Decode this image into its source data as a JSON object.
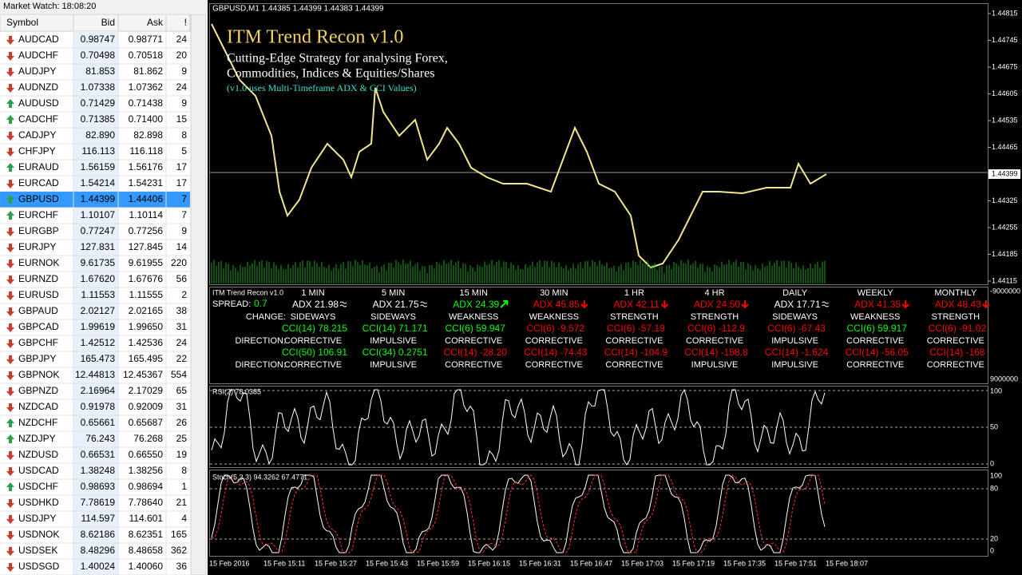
{
  "market_watch": {
    "title": "Market Watch: 18:08:20",
    "columns": [
      "Symbol",
      "Bid",
      "Ask",
      "!"
    ],
    "selected_row": 10,
    "rows": [
      {
        "symbol": "AUDCAD",
        "bid": "0.98747",
        "ask": "0.98771",
        "spread": 24,
        "trend": "down"
      },
      {
        "symbol": "AUDCHF",
        "bid": "0.70498",
        "ask": "0.70518",
        "spread": 20,
        "trend": "down"
      },
      {
        "symbol": "AUDJPY",
        "bid": "81.853",
        "ask": "81.862",
        "spread": 9,
        "trend": "down"
      },
      {
        "symbol": "AUDNZD",
        "bid": "1.07338",
        "ask": "1.07362",
        "spread": 24,
        "trend": "down"
      },
      {
        "symbol": "AUDUSD",
        "bid": "0.71429",
        "ask": "0.71438",
        "spread": 9,
        "trend": "up"
      },
      {
        "symbol": "CADCHF",
        "bid": "0.71385",
        "ask": "0.71400",
        "spread": 15,
        "trend": "up"
      },
      {
        "symbol": "CADJPY",
        "bid": "82.890",
        "ask": "82.898",
        "spread": 8,
        "trend": "down"
      },
      {
        "symbol": "CHFJPY",
        "bid": "116.113",
        "ask": "116.118",
        "spread": 5,
        "trend": "down"
      },
      {
        "symbol": "EURAUD",
        "bid": "1.56159",
        "ask": "1.56176",
        "spread": 17,
        "trend": "up"
      },
      {
        "symbol": "EURCAD",
        "bid": "1.54214",
        "ask": "1.54231",
        "spread": 17,
        "trend": "down"
      },
      {
        "symbol": "GBPUSD",
        "bid": "1.44399",
        "ask": "1.44406",
        "spread": 7,
        "trend": "up"
      },
      {
        "symbol": "EURCHF",
        "bid": "1.10107",
        "ask": "1.10114",
        "spread": 7,
        "trend": "up"
      },
      {
        "symbol": "EURGBP",
        "bid": "0.77247",
        "ask": "0.77256",
        "spread": 9,
        "trend": "down"
      },
      {
        "symbol": "EURJPY",
        "bid": "127.831",
        "ask": "127.845",
        "spread": 14,
        "trend": "down"
      },
      {
        "symbol": "EURNOK",
        "bid": "9.61735",
        "ask": "9.61955",
        "spread": 220,
        "trend": "down"
      },
      {
        "symbol": "EURNZD",
        "bid": "1.67620",
        "ask": "1.67676",
        "spread": 56,
        "trend": "down"
      },
      {
        "symbol": "EURUSD",
        "bid": "1.11553",
        "ask": "1.11555",
        "spread": 2,
        "trend": "down"
      },
      {
        "symbol": "GBPAUD",
        "bid": "2.02127",
        "ask": "2.02165",
        "spread": 38,
        "trend": "down"
      },
      {
        "symbol": "GBPCAD",
        "bid": "1.99619",
        "ask": "1.99650",
        "spread": 31,
        "trend": "down"
      },
      {
        "symbol": "GBPCHF",
        "bid": "1.42512",
        "ask": "1.42536",
        "spread": 24,
        "trend": "down"
      },
      {
        "symbol": "GBPJPY",
        "bid": "165.473",
        "ask": "165.495",
        "spread": 22,
        "trend": "down"
      },
      {
        "symbol": "GBPNOK",
        "bid": "12.44813",
        "ask": "12.45367",
        "spread": 554,
        "trend": "down"
      },
      {
        "symbol": "GBPNZD",
        "bid": "2.16964",
        "ask": "2.17029",
        "spread": 65,
        "trend": "down"
      },
      {
        "symbol": "NZDCAD",
        "bid": "0.91978",
        "ask": "0.92009",
        "spread": 31,
        "trend": "down"
      },
      {
        "symbol": "NZDCHF",
        "bid": "0.65661",
        "ask": "0.65687",
        "spread": 26,
        "trend": "up"
      },
      {
        "symbol": "NZDJPY",
        "bid": "76.243",
        "ask": "76.268",
        "spread": 25,
        "trend": "up"
      },
      {
        "symbol": "NZDUSD",
        "bid": "0.66531",
        "ask": "0.66550",
        "spread": 19,
        "trend": "down"
      },
      {
        "symbol": "USDCAD",
        "bid": "1.38248",
        "ask": "1.38256",
        "spread": 8,
        "trend": "down"
      },
      {
        "symbol": "USDCHF",
        "bid": "0.98693",
        "ask": "0.98694",
        "spread": 1,
        "trend": "up"
      },
      {
        "symbol": "USDHKD",
        "bid": "7.78619",
        "ask": "7.78640",
        "spread": 21,
        "trend": "down"
      },
      {
        "symbol": "USDJPY",
        "bid": "114.597",
        "ask": "114.601",
        "spread": 4,
        "trend": "down"
      },
      {
        "symbol": "USDNOK",
        "bid": "8.62186",
        "ask": "8.62351",
        "spread": 165,
        "trend": "down"
      },
      {
        "symbol": "USDSEK",
        "bid": "8.48296",
        "ask": "8.48658",
        "spread": 362,
        "trend": "down"
      },
      {
        "symbol": "USDSGD",
        "bid": "1.40024",
        "ask": "1.40060",
        "spread": 36,
        "trend": "down"
      }
    ]
  },
  "chart": {
    "header": "GBPUSD,M1  1.44385 1.44399 1.44383 1.44399",
    "overlay": {
      "title": "ITM Trend Recon v1.0",
      "line1": "Cutting-Edge Strategy for analysing Forex,",
      "line2": "Commodities, Indices & Equities/Shares",
      "note": "(v1.0 uses Multi-Timeframe ADX & CCI Values)"
    },
    "price_axis": [
      "1.44815",
      "1.44745",
      "1.44675",
      "1.44605",
      "1.44535",
      "1.44465",
      "1.44399",
      "1.44325",
      "1.44255",
      "1.44185",
      "1.44115"
    ],
    "indicator_axis": [
      "-9000000",
      "9000000"
    ],
    "time_axis": [
      "15 Feb 2016",
      "15 Feb 15:11",
      "15 Feb 15:27",
      "15 Feb 15:43",
      "15 Feb 15:59",
      "15 Feb 16:15",
      "15 Feb 16:31",
      "15 Feb 16:47",
      "15 Feb 17:03",
      "15 Feb 17:19",
      "15 Feb 17:35",
      "15 Feb 17:51",
      "15 Feb 18:07"
    ]
  },
  "trend_panel": {
    "name": "ITM Trend Recon v1.0",
    "spread_label": "SPREAD:",
    "spread": "0.7",
    "change_label": "CHANGE:",
    "direction_label": "DIRECTION:",
    "timeframes": [
      {
        "label": "1 MIN",
        "adx": "ADX 21.98",
        "adx_color": "#ffffff",
        "change": "SIDEWAYS",
        "cci1": "CCI(14) 78.215",
        "cci1_color": "#00ff00",
        "dir1": "CORRECTIVE",
        "cci2": "CCI(50) 106.91",
        "cci2_color": "#00ff00",
        "dir2": "CORRECTIVE"
      },
      {
        "label": "5 MIN",
        "adx": "ADX 21.75",
        "adx_color": "#ffffff",
        "change": "SIDEWAYS",
        "cci1": "CCI(14) 71.171",
        "cci1_color": "#00ff00",
        "dir1": "IMPULSIVE",
        "cci2": "CCI(34) 0.2751",
        "cci2_color": "#00ff00",
        "dir2": "IMPULSIVE"
      },
      {
        "label": "15 MIN",
        "adx": "ADX 24.39",
        "adx_color": "#00ff00",
        "change": "WEAKNESS",
        "cci1": "CCI(6) 59.947",
        "cci1_color": "#00ff00",
        "dir1": "CORRECTIVE",
        "cci2": "CCI(14) -28.20",
        "cci2_color": "#ff0000",
        "dir2": "CORRECTIVE"
      },
      {
        "label": "30 MIN",
        "adx": "ADX 45.85",
        "adx_color": "#ff0000",
        "change": "WEAKNESS",
        "cci1": "CCI(6) -9.572",
        "cci1_color": "#ff0000",
        "dir1": "CORRECTIVE",
        "cci2": "CCI(14) -74.43",
        "cci2_color": "#ff0000",
        "dir2": "CORRECTIVE"
      },
      {
        "label": "1 HR",
        "adx": "ADX 42.11",
        "adx_color": "#ff0000",
        "change": "STRENGTH",
        "cci1": "CCI(6) -57.19",
        "cci1_color": "#ff0000",
        "dir1": "CORRECTIVE",
        "cci2": "CCI(14) -104.9",
        "cci2_color": "#ff0000",
        "dir2": "CORRECTIVE"
      },
      {
        "label": "4 HR",
        "adx": "ADX 24.50",
        "adx_color": "#ff0000",
        "change": "STRENGTH",
        "cci1": "CCI(6) -112.9",
        "cci1_color": "#ff0000",
        "dir1": "CORRECTIVE",
        "cci2": "CCI(14) -158.8",
        "cci2_color": "#ff0000",
        "dir2": "IMPULSIVE"
      },
      {
        "label": "DAILY",
        "adx": "ADX 17.71",
        "adx_color": "#ffffff",
        "change": "SIDEWAYS",
        "cci1": "CCI(6) -67.43",
        "cci1_color": "#ff0000",
        "dir1": "IMPULSIVE",
        "cci2": "CCI(14) -1.624",
        "cci2_color": "#ff0000",
        "dir2": "IMPULSIVE"
      },
      {
        "label": "WEEKLY",
        "adx": "ADX 41.35",
        "adx_color": "#ff0000",
        "change": "WEAKNESS",
        "cci1": "CCI(6) 59.917",
        "cci1_color": "#00ff00",
        "dir1": "CORRECTIVE",
        "cci2": "CCI(14) -56.05",
        "cci2_color": "#ff0000",
        "dir2": "CORRECTIVE"
      },
      {
        "label": "MONTHLY",
        "adx": "ADX 48.43",
        "adx_color": "#ff0000",
        "change": "STRENGTH",
        "cci1": "CCI(6) -91.02",
        "cci1_color": "#ff0000",
        "dir1": "CORRECTIVE",
        "cci2": "CCI(14) -168",
        "cci2_color": "#ff0000",
        "dir2": "CORRECTIVE"
      }
    ]
  },
  "rsi": {
    "label": "RSI(2) 78.0385",
    "axis": [
      "100",
      "50",
      "0"
    ]
  },
  "stoch": {
    "label": "Stoch(5,3,3) 94.3262 67.4771",
    "axis": [
      "100",
      "80",
      "20",
      "0"
    ]
  }
}
